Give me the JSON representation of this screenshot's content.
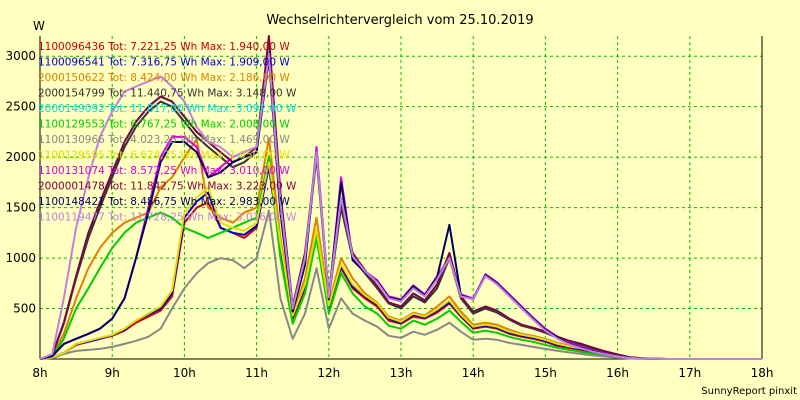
{
  "chart_data": {
    "type": "line",
    "title": "Wechselrichtervergleich vom 25.10.2019",
    "ylabel": "W",
    "xlabel": "",
    "x_ticks": [
      "8h",
      "9h",
      "10h",
      "11h",
      "12h",
      "13h",
      "14h",
      "15h",
      "16h",
      "17h",
      "18h"
    ],
    "y_ticks": [
      500,
      1000,
      1500,
      2000,
      2500,
      3000
    ],
    "xlim": [
      8,
      18
    ],
    "ylim": [
      0,
      3200
    ],
    "grid": true,
    "legend_position": "top-left",
    "x": [
      8.0,
      8.17,
      8.33,
      8.5,
      8.67,
      8.83,
      9.0,
      9.17,
      9.33,
      9.5,
      9.67,
      9.83,
      10.0,
      10.17,
      10.33,
      10.5,
      10.67,
      10.83,
      11.0,
      11.17,
      11.33,
      11.5,
      11.67,
      11.83,
      12.0,
      12.17,
      12.33,
      12.5,
      12.67,
      12.83,
      13.0,
      13.17,
      13.33,
      13.5,
      13.67,
      13.83,
      14.0,
      14.17,
      14.33,
      14.5,
      14.67,
      14.83,
      15.0,
      15.17,
      15.33,
      15.5,
      15.67,
      15.83,
      16.0,
      16.17,
      16.33,
      16.5,
      16.67,
      16.83,
      17.0,
      17.17,
      17.33,
      17.5,
      17.67,
      17.83,
      18.0
    ],
    "series": [
      {
        "name": "1100096436 Tot: 7.221,25 Wh Max: 1.940,00 W",
        "color": "#cc0000",
        "values": [
          0,
          20,
          60,
          140,
          170,
          200,
          230,
          280,
          360,
          420,
          480,
          620,
          1350,
          1500,
          1550,
          1300,
          1250,
          1200,
          1300,
          1920,
          1100,
          400,
          700,
          1250,
          500,
          900,
          700,
          600,
          520,
          380,
          350,
          420,
          400,
          460,
          550,
          420,
          300,
          320,
          300,
          250,
          220,
          200,
          170,
          130,
          110,
          90,
          60,
          40,
          20,
          10,
          5,
          2,
          0,
          0,
          0,
          0,
          0,
          0,
          0,
          0,
          0
        ]
      },
      {
        "name": "1100096541 Tot: 7.316,75 Wh Max: 1.909,00 W",
        "color": "#0000cc",
        "values": [
          0,
          20,
          60,
          150,
          170,
          200,
          240,
          290,
          380,
          440,
          500,
          650,
          1400,
          1560,
          1650,
          1300,
          1250,
          1230,
          1320,
          1900,
          1100,
          420,
          720,
          1250,
          520,
          920,
          720,
          620,
          540,
          400,
          360,
          440,
          410,
          480,
          560,
          430,
          310,
          330,
          310,
          260,
          230,
          210,
          180,
          140,
          120,
          100,
          70,
          50,
          25,
          10,
          5,
          2,
          0,
          0,
          0,
          0,
          0,
          0,
          0,
          0,
          0
        ]
      },
      {
        "name": "2000150622 Tot: 8.424,00 Wh Max: 2.186,00 W",
        "color": "#e08000",
        "values": [
          0,
          30,
          250,
          600,
          900,
          1100,
          1250,
          1350,
          1400,
          1450,
          1700,
          1800,
          2000,
          2180,
          1500,
          1400,
          1350,
          1450,
          1500,
          2186,
          1200,
          450,
          800,
          1400,
          550,
          1000,
          800,
          650,
          560,
          420,
          380,
          460,
          430,
          520,
          620,
          470,
          340,
          360,
          340,
          290,
          250,
          230,
          200,
          160,
          130,
          110,
          80,
          55,
          30,
          12,
          6,
          2,
          0,
          0,
          0,
          0,
          0,
          0,
          0,
          0,
          0
        ]
      },
      {
        "name": "2000154799 Tot: 11.440,75 Wh Max: 3.148,00 W",
        "color": "#333333",
        "values": [
          0,
          40,
          350,
          800,
          1200,
          1500,
          1800,
          2100,
          2300,
          2450,
          2550,
          2500,
          2350,
          2200,
          2100,
          2000,
          1900,
          1950,
          2050,
          3148,
          1600,
          500,
          1000,
          2000,
          600,
          1500,
          1000,
          850,
          700,
          550,
          500,
          620,
          560,
          700,
          1000,
          600,
          450,
          500,
          460,
          390,
          330,
          300,
          260,
          210,
          170,
          140,
          100,
          70,
          40,
          15,
          8,
          3,
          0,
          0,
          0,
          0,
          0,
          0,
          0,
          0,
          0
        ]
      },
      {
        "name": "2000149092 Tot: 11.817,00 Wh Max: 3.092,00 W",
        "color": "#00dddd",
        "values": [
          0,
          40,
          360,
          820,
          1250,
          1550,
          1850,
          2150,
          2350,
          2500,
          2600,
          2550,
          2400,
          2250,
          2150,
          2050,
          1950,
          2000,
          2100,
          3092,
          1650,
          520,
          1050,
          2050,
          620,
          1550,
          1050,
          880,
          720,
          560,
          520,
          650,
          580,
          740,
          1050,
          620,
          470,
          520,
          480,
          400,
          340,
          310,
          270,
          220,
          180,
          150,
          110,
          75,
          45,
          18,
          9,
          3,
          0,
          0,
          0,
          0,
          0,
          0,
          0,
          0,
          0
        ]
      },
      {
        "name": "1100129553 Tot: 6.767,25 Wh Max: 2.008,00 W",
        "color": "#00cc00",
        "values": [
          0,
          30,
          200,
          500,
          700,
          900,
          1100,
          1250,
          1350,
          1400,
          1450,
          1400,
          1300,
          1250,
          1200,
          1250,
          1300,
          1350,
          1400,
          2008,
          1000,
          350,
          650,
          1200,
          450,
          850,
          650,
          520,
          450,
          330,
          300,
          380,
          340,
          400,
          480,
          370,
          260,
          280,
          260,
          220,
          190,
          170,
          140,
          110,
          90,
          70,
          50,
          35,
          18,
          8,
          4,
          1,
          0,
          0,
          0,
          0,
          0,
          0,
          0,
          0,
          0
        ]
      },
      {
        "name": "1100130966 Tot: 4.023,25 Wh Max: 1.469,00 W",
        "color": "#888888",
        "values": [
          0,
          10,
          50,
          80,
          90,
          100,
          120,
          150,
          180,
          220,
          300,
          500,
          700,
          850,
          950,
          1000,
          980,
          900,
          1000,
          1469,
          600,
          200,
          450,
          900,
          300,
          600,
          450,
          380,
          320,
          230,
          210,
          270,
          240,
          290,
          360,
          270,
          190,
          200,
          190,
          160,
          140,
          120,
          100,
          80,
          65,
          50,
          35,
          25,
          12,
          5,
          2,
          1,
          0,
          0,
          0,
          0,
          0,
          0,
          0,
          0,
          0
        ]
      },
      {
        "name": "1100129595 Tot: 6.624,25 Wh Max: 1.950,00 W",
        "color": "#e0e000",
        "values": [
          0,
          20,
          60,
          150,
          180,
          210,
          240,
          300,
          380,
          450,
          520,
          680,
          1450,
          1600,
          1700,
          1350,
          1300,
          1270,
          1350,
          1950,
          1150,
          430,
          740,
          1280,
          530,
          940,
          740,
          630,
          550,
          410,
          370,
          450,
          420,
          490,
          580,
          440,
          320,
          340,
          320,
          270,
          240,
          220,
          190,
          150,
          125,
          105,
          75,
          52,
          27,
          11,
          5,
          2,
          0,
          0,
          0,
          0,
          0,
          0,
          0,
          0,
          0
        ]
      },
      {
        "name": "1100131074 Tot: 8.572,25 Wh Max: 3.010,00 W",
        "color": "#dd00dd",
        "values": [
          0,
          30,
          150,
          200,
          250,
          300,
          400,
          600,
          1000,
          1500,
          2000,
          2200,
          2200,
          2100,
          1800,
          1900,
          2000,
          2050,
          2100,
          3010,
          1500,
          480,
          950,
          2100,
          600,
          1800,
          1000,
          870,
          780,
          620,
          590,
          730,
          640,
          820,
          1000,
          640,
          600,
          840,
          760,
          640,
          520,
          410,
          300,
          220,
          160,
          120,
          80,
          55,
          30,
          12,
          6,
          2,
          0,
          0,
          0,
          0,
          0,
          0,
          0,
          0,
          0
        ]
      },
      {
        "name": "2000001478 Tot: 11.842,75 Wh Max: 3.223,00 W",
        "color": "#800040",
        "values": [
          0,
          40,
          360,
          820,
          1250,
          1550,
          1850,
          2150,
          2350,
          2500,
          2600,
          2550,
          2400,
          2250,
          2150,
          2050,
          1950,
          2000,
          2100,
          3223,
          1650,
          520,
          1050,
          2050,
          620,
          1550,
          1050,
          880,
          720,
          560,
          520,
          650,
          580,
          740,
          1050,
          620,
          470,
          520,
          480,
          400,
          340,
          310,
          270,
          220,
          180,
          150,
          110,
          75,
          45,
          18,
          9,
          3,
          0,
          0,
          0,
          0,
          0,
          0,
          0,
          0,
          0
        ]
      },
      {
        "name": "1100148421 Tot: 8.486,75 Wh Max: 2.983,00 W",
        "color": "#000060",
        "values": [
          0,
          30,
          150,
          200,
          250,
          300,
          400,
          600,
          1000,
          1450,
          1950,
          2150,
          2150,
          2050,
          1800,
          1850,
          1950,
          2000,
          2050,
          2983,
          1450,
          470,
          930,
          2050,
          590,
          1750,
          980,
          860,
          770,
          610,
          580,
          720,
          630,
          810,
          1330,
          630,
          590,
          830,
          750,
          630,
          510,
          400,
          290,
          210,
          150,
          110,
          75,
          50,
          28,
          11,
          5,
          2,
          0,
          0,
          0,
          0,
          0,
          0,
          0,
          0,
          0
        ]
      },
      {
        "name": "1100119477 Tot: 11.728,25 Wh Max: 3.016,00 W",
        "color": "#c080e0",
        "values": [
          0,
          50,
          600,
          1300,
          1800,
          2200,
          2450,
          2650,
          2700,
          2750,
          2800,
          2700,
          2550,
          2300,
          2150,
          2100,
          2000,
          2050,
          2100,
          3016,
          1550,
          500,
          1000,
          2050,
          610,
          1600,
          1020,
          870,
          760,
          600,
          570,
          700,
          620,
          790,
          1000,
          620,
          590,
          820,
          740,
          620,
          500,
          390,
          280,
          200,
          145,
          105,
          70,
          48,
          26,
          10,
          5,
          2,
          0,
          0,
          0,
          0,
          0,
          0,
          0,
          0,
          0
        ]
      }
    ]
  },
  "watermark": "SunnyReport pinxit"
}
